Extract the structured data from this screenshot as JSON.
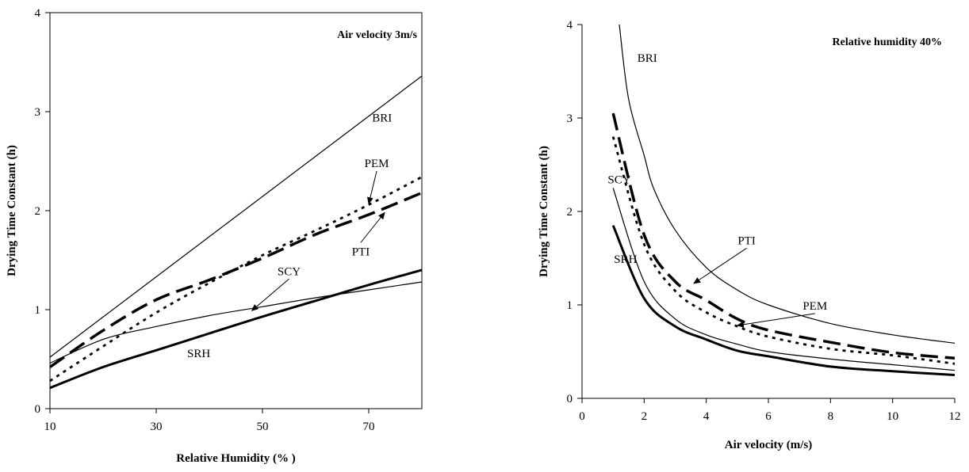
{
  "chart_data": [
    {
      "type": "line",
      "title": "Air velocity  3m/s",
      "xlabel": "Relative Humidity (% )",
      "ylabel": "Drying Time Constant (h)",
      "xlim": [
        10,
        80
      ],
      "ylim": [
        0,
        4
      ],
      "xticks": [
        10,
        30,
        50,
        70
      ],
      "yticks": [
        0,
        1,
        2,
        3,
        4
      ],
      "grid": false,
      "series": [
        {
          "name": "BRI",
          "style": "thin-solid",
          "x": [
            10,
            80
          ],
          "y": [
            0.52,
            3.36
          ]
        },
        {
          "name": "PEM",
          "style": "dotted",
          "x": [
            10,
            20,
            30,
            40,
            50,
            60,
            70,
            80
          ],
          "y": [
            0.28,
            0.63,
            0.97,
            1.27,
            1.55,
            1.8,
            2.06,
            2.34
          ]
        },
        {
          "name": "PTI",
          "style": "thick-dash",
          "x": [
            10,
            20,
            30,
            40,
            50,
            60,
            70,
            80
          ],
          "y": [
            0.42,
            0.79,
            1.1,
            1.3,
            1.52,
            1.76,
            1.96,
            2.18
          ]
        },
        {
          "name": "SCY",
          "style": "thin-solid",
          "x": [
            10,
            20,
            30,
            40,
            50,
            60,
            70,
            80
          ],
          "y": [
            0.46,
            0.7,
            0.83,
            0.94,
            1.03,
            1.12,
            1.2,
            1.28
          ]
        },
        {
          "name": "SRH",
          "style": "thick-solid",
          "x": [
            10,
            20,
            30,
            40,
            50,
            60,
            70,
            80
          ],
          "y": [
            0.21,
            0.42,
            0.59,
            0.76,
            0.93,
            1.09,
            1.25,
            1.4
          ]
        }
      ],
      "annotations": [
        "BRI",
        "PEM",
        "PTI",
        "SCY",
        "SRH"
      ]
    },
    {
      "type": "line",
      "title": "Relative humidity  40%",
      "xlabel": "Air velocity (m/s)",
      "ylabel": "Drying Time Constant (h)",
      "xlim": [
        0,
        12
      ],
      "ylim": [
        0,
        4
      ],
      "xticks": [
        0,
        2,
        4,
        6,
        8,
        10,
        12
      ],
      "yticks": [
        0,
        1,
        2,
        3,
        4
      ],
      "grid": false,
      "series": [
        {
          "name": "BRI",
          "style": "thin-solid",
          "x": [
            1.2,
            1.5,
            2,
            2.3,
            3,
            4,
            5,
            6,
            8,
            10,
            12
          ],
          "y": [
            4.0,
            3.2,
            2.6,
            2.25,
            1.8,
            1.4,
            1.16,
            1.0,
            0.8,
            0.68,
            0.59
          ]
        },
        {
          "name": "PTI",
          "style": "thick-dash",
          "x": [
            1,
            2,
            3,
            4,
            5,
            6,
            8,
            10,
            12
          ],
          "y": [
            3.05,
            1.75,
            1.25,
            1.05,
            0.85,
            0.73,
            0.6,
            0.49,
            0.43
          ]
        },
        {
          "name": "PEM",
          "style": "dotted",
          "x": [
            1,
            2,
            3,
            4,
            5,
            6,
            8,
            10,
            12
          ],
          "y": [
            2.8,
            1.65,
            1.15,
            0.92,
            0.77,
            0.66,
            0.53,
            0.46,
            0.37
          ]
        },
        {
          "name": "SCY",
          "style": "thin-solid",
          "x": [
            1,
            2,
            3,
            4,
            5,
            6,
            8,
            10,
            12
          ],
          "y": [
            2.25,
            1.25,
            0.85,
            0.68,
            0.58,
            0.5,
            0.42,
            0.36,
            0.3
          ]
        },
        {
          "name": "SRH",
          "style": "thick-solid",
          "x": [
            1,
            2,
            3,
            4,
            5,
            6,
            8,
            10,
            12
          ],
          "y": [
            1.85,
            1.07,
            0.77,
            0.63,
            0.51,
            0.45,
            0.34,
            0.29,
            0.25
          ]
        }
      ],
      "annotations": [
        "BRI",
        "SCY",
        "PTI",
        "PEM",
        "SRH"
      ]
    }
  ]
}
